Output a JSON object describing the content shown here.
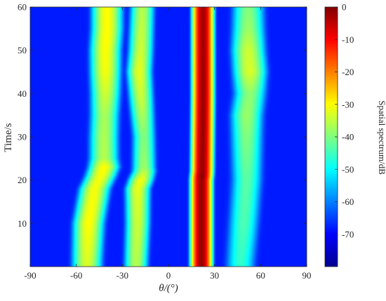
{
  "chart_data": {
    "type": "heatmap",
    "title": "",
    "xlabel": "θ/(°)",
    "ylabel": "Time/s",
    "colorbar_label": "Spatial spectrum/dB",
    "xlim": [
      -90,
      90
    ],
    "ylim": [
      0,
      60
    ],
    "clim": [
      -80,
      0
    ],
    "colormap": "jet",
    "x_ticks": [
      -90,
      -60,
      -30,
      0,
      30,
      60,
      90
    ],
    "x_tick_labels": [
      "-90",
      "-60",
      "-30",
      "0",
      "30",
      "60",
      "90"
    ],
    "y_ticks": [
      10,
      20,
      30,
      40,
      50,
      60
    ],
    "y_tick_labels": [
      "10",
      "20",
      "30",
      "40",
      "50",
      "60"
    ],
    "colorbar_ticks": [
      0,
      -10,
      -20,
      -30,
      -40,
      -50,
      -60,
      -70
    ],
    "colorbar_tick_labels": [
      "0",
      "-10",
      "-20",
      "-30",
      "-40",
      "-50",
      "-60",
      "-70"
    ],
    "background_db": -68,
    "sources": [
      {
        "track": [
          [
            1,
            -53
          ],
          [
            10,
            -52
          ],
          [
            18,
            -48
          ],
          [
            21,
            -44
          ],
          [
            23,
            -42
          ],
          [
            30,
            -42
          ],
          [
            40,
            -41
          ],
          [
            50,
            -41
          ],
          [
            55,
            -40
          ],
          [
            60,
            -40
          ]
        ],
        "peak_db": [
          [
            1,
            -33
          ],
          [
            10,
            -30
          ],
          [
            20,
            -31
          ],
          [
            23,
            -30
          ],
          [
            25,
            -36
          ],
          [
            35,
            -37
          ],
          [
            45,
            -31
          ],
          [
            52,
            -30
          ],
          [
            60,
            -30
          ]
        ],
        "width_deg": 2.8
      },
      {
        "track": [
          [
            1,
            -21
          ],
          [
            10,
            -20
          ],
          [
            18,
            -20
          ],
          [
            21,
            -17
          ],
          [
            22,
            -16
          ],
          [
            30,
            -16
          ],
          [
            40,
            -18
          ],
          [
            45,
            -19
          ],
          [
            50,
            -18
          ],
          [
            60,
            -17
          ]
        ],
        "peak_db": [
          [
            1,
            -36
          ],
          [
            15,
            -33
          ],
          [
            20,
            -31
          ],
          [
            23,
            -38
          ],
          [
            30,
            -40
          ],
          [
            38,
            -35
          ],
          [
            45,
            -32
          ],
          [
            50,
            -34
          ],
          [
            60,
            -36
          ]
        ],
        "width_deg": 2.3
      },
      {
        "track": [
          [
            1,
            21.5
          ],
          [
            20,
            21.5
          ],
          [
            22,
            22
          ],
          [
            40,
            22.5
          ],
          [
            60,
            22.5
          ]
        ],
        "peak_db": [
          [
            1,
            -2
          ],
          [
            20,
            -2
          ],
          [
            21,
            -1
          ],
          [
            22,
            -2
          ],
          [
            60,
            -3
          ]
        ],
        "width_deg": 1.6
      },
      {
        "track": [
          [
            1,
            47
          ],
          [
            10,
            49
          ],
          [
            20,
            51
          ],
          [
            30,
            51
          ],
          [
            35,
            51
          ],
          [
            40,
            53
          ],
          [
            45,
            53
          ],
          [
            50,
            52
          ],
          [
            55,
            52
          ],
          [
            60,
            52
          ]
        ],
        "peak_db": [
          [
            1,
            -46
          ],
          [
            10,
            -44
          ],
          [
            20,
            -43
          ],
          [
            30,
            -40
          ],
          [
            35,
            -38
          ],
          [
            40,
            -39
          ],
          [
            45,
            -33
          ],
          [
            50,
            -34
          ],
          [
            55,
            -38
          ],
          [
            60,
            -40
          ]
        ],
        "width_deg": 3.2
      }
    ]
  }
}
